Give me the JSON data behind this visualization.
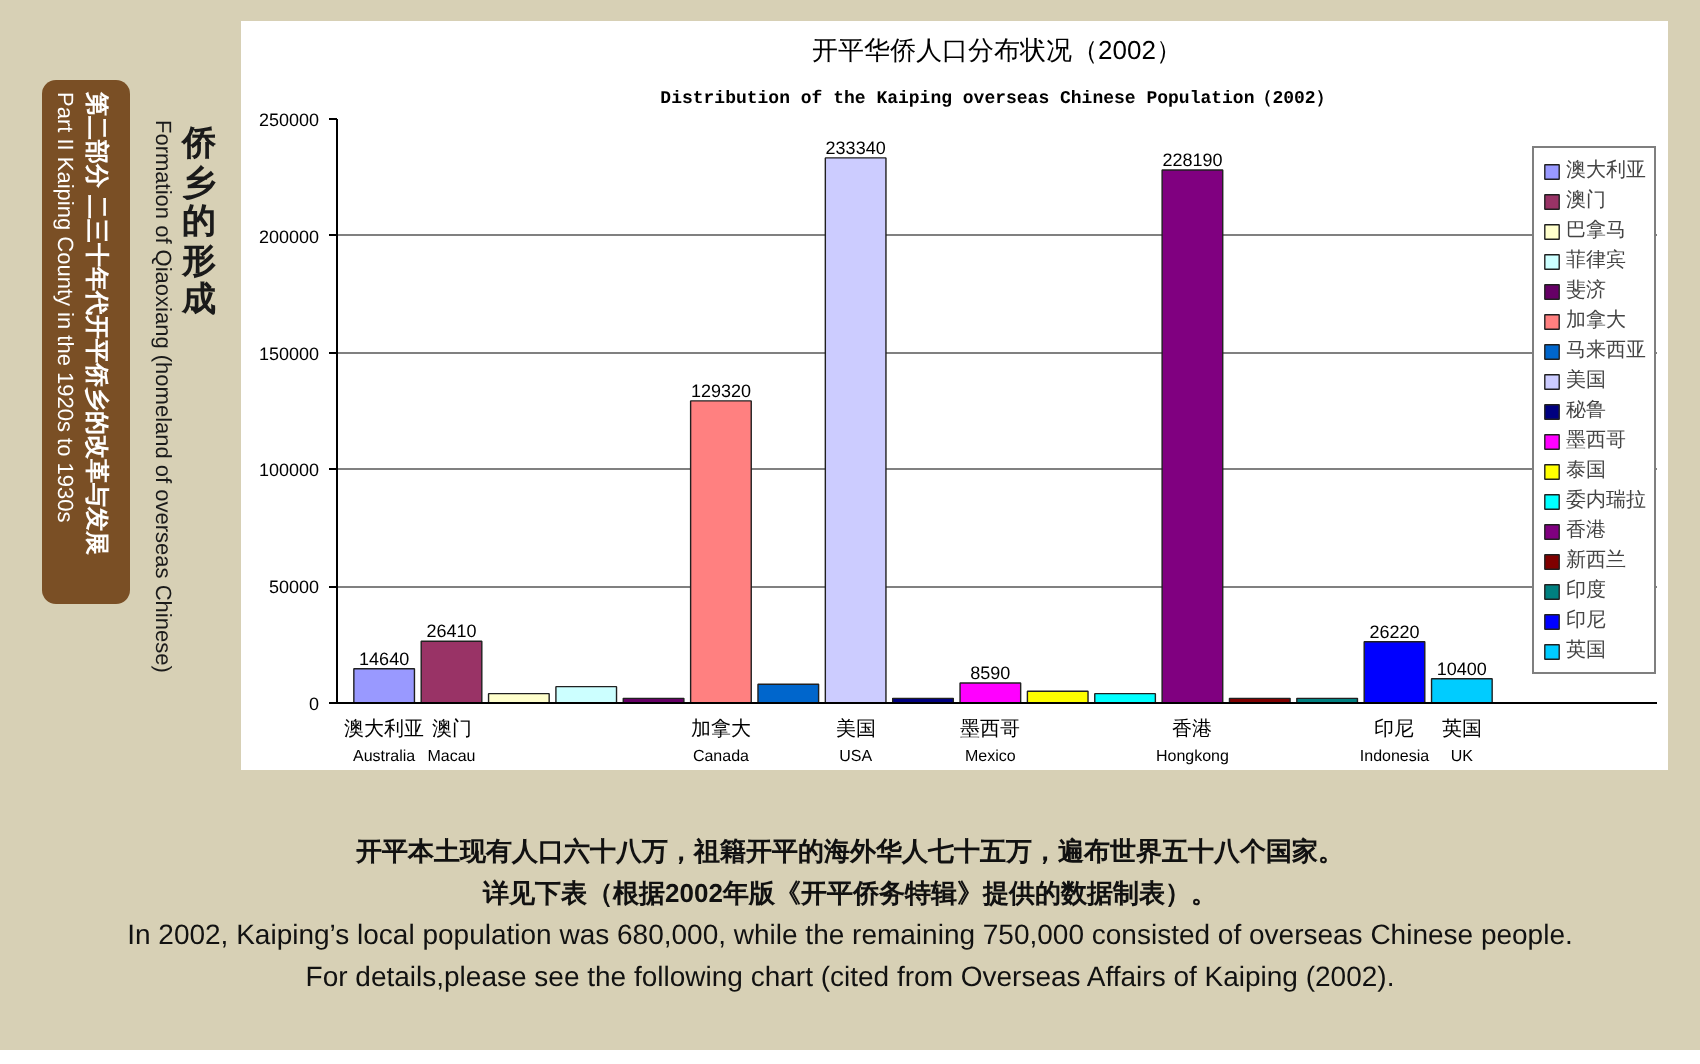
{
  "chart_data": {
    "type": "bar",
    "title": "开平华侨人口分布状况（2002）",
    "subtitle": "Distribution of the Kaiping overseas Chinese Population（2002）",
    "categories": [
      "澳大利亚\nAustralia",
      "澳门\nMacau",
      null,
      null,
      null,
      "加拿大\nCanada",
      null,
      "美国\nUSA",
      null,
      "墨西哥\nMexico",
      null,
      null,
      "香港\nHongkong",
      null,
      null,
      "印尼\nIndonesia",
      "英国\nUK"
    ],
    "series": [
      {
        "name": "澳大利亚",
        "color": "#9999ff",
        "values": [
          14640,
          null,
          null,
          null,
          null,
          null,
          null,
          null,
          null,
          null,
          null,
          null,
          null,
          null,
          null,
          null,
          null
        ],
        "value_labels": [
          "14640",
          null,
          null,
          null,
          null,
          null,
          null,
          null,
          null,
          null,
          null,
          null,
          null,
          null,
          null,
          null,
          null
        ]
      },
      {
        "name": "澳门",
        "color": "#993366",
        "values": [
          null,
          26410,
          null,
          null,
          null,
          null,
          null,
          null,
          null,
          null,
          null,
          null,
          null,
          null,
          null,
          null,
          null
        ],
        "value_labels": [
          null,
          "26410",
          null,
          null,
          null,
          null,
          null,
          null,
          null,
          null,
          null,
          null,
          null,
          null,
          null,
          null,
          null
        ]
      },
      {
        "name": "巴拿马",
        "color": "#ffffcc",
        "values": [
          null,
          null,
          4000,
          null,
          null,
          null,
          null,
          null,
          null,
          null,
          null,
          null,
          null,
          null,
          null,
          null,
          null
        ]
      },
      {
        "name": "菲律宾",
        "color": "#ccffff",
        "values": [
          null,
          null,
          null,
          7000,
          null,
          null,
          null,
          null,
          null,
          null,
          null,
          null,
          null,
          null,
          null,
          null,
          null
        ]
      },
      {
        "name": "斐济",
        "color": "#660066",
        "values": [
          null,
          null,
          null,
          null,
          2000,
          null,
          null,
          null,
          null,
          null,
          null,
          null,
          null,
          null,
          null,
          null,
          null
        ]
      },
      {
        "name": "加拿大",
        "color": "#ff8080",
        "values": [
          null,
          null,
          null,
          null,
          null,
          129320,
          null,
          null,
          null,
          null,
          null,
          null,
          null,
          null,
          null,
          null,
          null
        ],
        "value_labels": [
          null,
          null,
          null,
          null,
          null,
          "129320",
          null,
          null,
          null,
          null,
          null,
          null,
          null,
          null,
          null,
          null,
          null
        ]
      },
      {
        "name": "马来西亚",
        "color": "#0066cc",
        "values": [
          null,
          null,
          null,
          null,
          null,
          null,
          8000,
          null,
          null,
          null,
          null,
          null,
          null,
          null,
          null,
          null,
          null
        ]
      },
      {
        "name": "美国",
        "color": "#ccccff",
        "values": [
          null,
          null,
          null,
          null,
          null,
          null,
          null,
          233340,
          null,
          null,
          null,
          null,
          null,
          null,
          null,
          null,
          null
        ],
        "value_labels": [
          null,
          null,
          null,
          null,
          null,
          null,
          null,
          "233340",
          null,
          null,
          null,
          null,
          null,
          null,
          null,
          null,
          null
        ]
      },
      {
        "name": "秘鲁",
        "color": "#000080",
        "values": [
          null,
          null,
          null,
          null,
          null,
          null,
          null,
          null,
          2000,
          null,
          null,
          null,
          null,
          null,
          null,
          null,
          null
        ]
      },
      {
        "name": "墨西哥",
        "color": "#ff00ff",
        "values": [
          null,
          null,
          null,
          null,
          null,
          null,
          null,
          null,
          null,
          8590,
          null,
          null,
          null,
          null,
          null,
          null,
          null
        ],
        "value_labels": [
          null,
          null,
          null,
          null,
          null,
          null,
          null,
          null,
          null,
          "8590",
          null,
          null,
          null,
          null,
          null,
          null,
          null
        ]
      },
      {
        "name": "泰国",
        "color": "#ffff00",
        "values": [
          null,
          null,
          null,
          null,
          null,
          null,
          null,
          null,
          null,
          null,
          5000,
          null,
          null,
          null,
          null,
          null,
          null
        ]
      },
      {
        "name": "委内瑞拉",
        "color": "#00ffff",
        "values": [
          null,
          null,
          null,
          null,
          null,
          null,
          null,
          null,
          null,
          null,
          null,
          4000,
          null,
          null,
          null,
          null,
          null
        ]
      },
      {
        "name": "香港",
        "color": "#800080",
        "values": [
          null,
          null,
          null,
          null,
          null,
          null,
          null,
          null,
          null,
          null,
          null,
          null,
          228190,
          null,
          null,
          null,
          null
        ],
        "value_labels": [
          null,
          null,
          null,
          null,
          null,
          null,
          null,
          null,
          null,
          null,
          null,
          null,
          "228190",
          null,
          null,
          null,
          null
        ]
      },
      {
        "name": "新西兰",
        "color": "#800000",
        "values": [
          null,
          null,
          null,
          null,
          null,
          null,
          null,
          null,
          null,
          null,
          null,
          null,
          null,
          2000,
          null,
          null,
          null
        ]
      },
      {
        "name": "印度",
        "color": "#008080",
        "values": [
          null,
          null,
          null,
          null,
          null,
          null,
          null,
          null,
          null,
          null,
          null,
          null,
          null,
          null,
          2000,
          null,
          null
        ]
      },
      {
        "name": "印尼",
        "color": "#0000ff",
        "values": [
          null,
          null,
          null,
          null,
          null,
          null,
          null,
          null,
          null,
          null,
          null,
          null,
          null,
          null,
          null,
          26220,
          null
        ],
        "value_labels": [
          null,
          null,
          null,
          null,
          null,
          null,
          null,
          null,
          null,
          null,
          null,
          null,
          null,
          null,
          null,
          "26220",
          null
        ]
      },
      {
        "name": "英国",
        "color": "#00ccff",
        "values": [
          null,
          null,
          null,
          null,
          null,
          null,
          null,
          null,
          null,
          null,
          null,
          null,
          null,
          null,
          null,
          null,
          10400
        ],
        "value_labels": [
          null,
          null,
          null,
          null,
          null,
          null,
          null,
          null,
          null,
          null,
          null,
          null,
          null,
          null,
          null,
          null,
          "10400"
        ]
      }
    ],
    "stacked": true,
    "ylim": [
      0,
      250000
    ],
    "yticks": [
      0,
      50000,
      100000,
      150000,
      200000,
      250000
    ],
    "grid": "y",
    "legend": "right",
    "annotations": [
      "第二部分 二三十年代开平侨乡的改革与发展",
      "Part II  Kaiping County in the 1920s to 1930s",
      "侨乡的形成",
      "Formation of Qiaoxiang (homeland of overseas Chinese)",
      "开平本土现有人口六十八万，祖籍开平的海外华人七十五万，遍布世界五十八个国家。",
      "详见下表（根据2002年版《开平侨务特辑》提供的数据制表）。",
      "In 2002, Kaiping’s local population was 680,000, while the remaining 750,000 consisted of overseas Chinese people.",
      "For details,please see the following chart (cited from Overseas Affairs of Kaiping (2002)."
    ]
  }
}
